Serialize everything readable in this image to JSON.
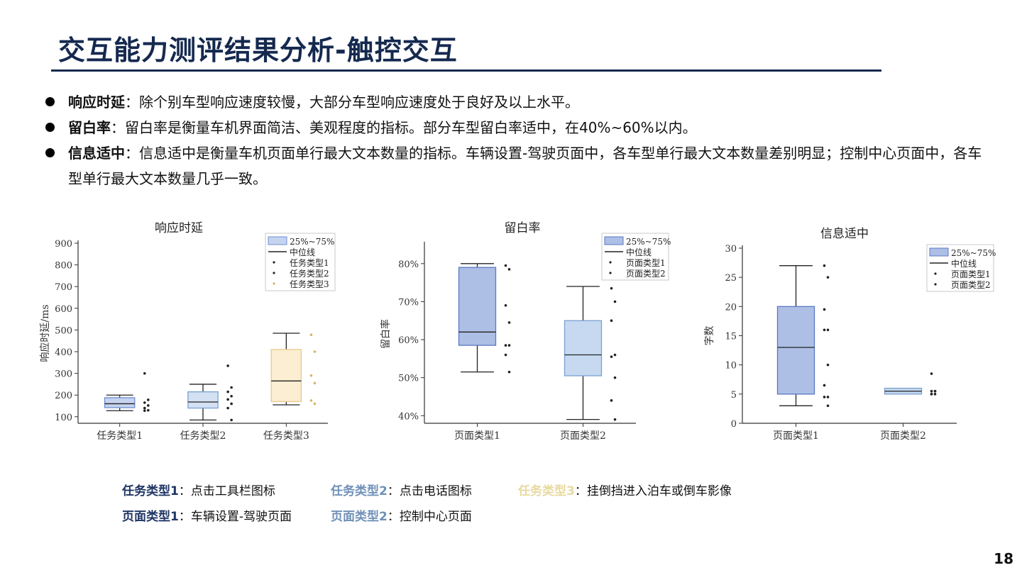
{
  "slide": {
    "title": "交互能力测评结果分析-触控交互",
    "page_number": "18"
  },
  "bullets": [
    {
      "term": "响应时延",
      "text": "：除个别车型响应速度较慢，大部分车型响应速度处于良好及以上水平。"
    },
    {
      "term": "留白率",
      "text": "：留白率是衡量车机界面简洁、美观程度的指标。部分车型留白率适中，在40%~60%以内。"
    },
    {
      "term": "信息适中",
      "text": "：信息适中是衡量车机页面单行最大文本数量的指标。车辆设置-驾驶页面中，各车型单行最大文本数量差别明显；控制中心页面中，各车型单行最大文本数量几乎一致。"
    }
  ],
  "notes": {
    "t1_key": "任务类型1",
    "t1_val": "：点击工具栏图标",
    "t2_key": "任务类型2",
    "t2_val": "：点击电话图标",
    "t3_key": "任务类型3",
    "t3_val": "：挂倒挡进入泊车或倒车影像",
    "p1_key": "页面类型1",
    "p1_val": "：车辆设置-驾驶页面",
    "p2_key": "页面类型2",
    "p2_val": "：控制中心页面",
    "colors": {
      "dark": "#1f3564",
      "mid": "#6f90b8",
      "yellow": "#e8d9a0"
    }
  },
  "chart_data": [
    {
      "type": "box",
      "title": "响应时延",
      "ylabel": "响应时延/ms",
      "xlabel": "",
      "ylim": [
        70,
        900
      ],
      "yticks": [
        100,
        200,
        300,
        400,
        500,
        600,
        700,
        800,
        900
      ],
      "ytick_labels": [
        "100",
        "200",
        "300",
        "400",
        "500",
        "600",
        "700",
        "800",
        "900"
      ],
      "categories": [
        "任务类型1",
        "任务类型2",
        "任务类型3"
      ],
      "legend": [
        "25%~75%",
        "中位线",
        "任务类型1",
        "任务类型2",
        "任务类型3"
      ],
      "series": [
        {
          "name": "任务类型1",
          "q1": 142,
          "median": 160,
          "q3": 188,
          "whisker_low": 128,
          "whisker_high": 200,
          "points": [
            300,
            178,
            165,
            152,
            140,
            130,
            128
          ],
          "color": "#6f8fd0",
          "fill": "#c6d3ef"
        },
        {
          "name": "任务类型2",
          "q1": 140,
          "median": 168,
          "q3": 215,
          "whisker_low": 85,
          "whisker_high": 250,
          "points": [
            335,
            235,
            215,
            195,
            180,
            160,
            140,
            85
          ],
          "color": "#7aa0d0",
          "fill": "#d3e1f3"
        },
        {
          "name": "任务类型3",
          "q1": 170,
          "median": 265,
          "q3": 410,
          "whisker_low": 155,
          "whisker_high": 485,
          "points": [
            478,
            400,
            290,
            255,
            175,
            160
          ],
          "color": "#e9c98a",
          "fill": "#fbeed2"
        }
      ]
    },
    {
      "type": "box",
      "title": "留白率",
      "ylabel": "留白率",
      "xlabel": "",
      "ylim": [
        38,
        85
      ],
      "yticks": [
        40,
        50,
        60,
        70,
        80
      ],
      "ytick_labels": [
        "40%",
        "50%",
        "60%",
        "70%",
        "80%"
      ],
      "categories": [
        "页面类型1",
        "页面类型2"
      ],
      "legend": [
        "25%~75%",
        "中位线",
        "页面类型1",
        "页面类型2"
      ],
      "series": [
        {
          "name": "页面类型1",
          "q1": 58.5,
          "median": 62,
          "q3": 79,
          "whisker_low": 51.5,
          "whisker_high": 80,
          "points": [
            79.5,
            78.5,
            69,
            64.5,
            58.5,
            58.5,
            56,
            51.5
          ],
          "color": "#5a78c0",
          "fill": "#aebfe6"
        },
        {
          "name": "页面类型2",
          "q1": 50.5,
          "median": 56,
          "q3": 65,
          "whisker_low": 39,
          "whisker_high": 74,
          "points": [
            73.5,
            70,
            65,
            56,
            55.5,
            50,
            44,
            39
          ],
          "color": "#7aa0d0",
          "fill": "#c6d9f0"
        }
      ]
    },
    {
      "type": "box",
      "title": "信息适中",
      "ylabel": "字数",
      "xlabel": "",
      "ylim": [
        0,
        30
      ],
      "yticks": [
        0,
        5,
        10,
        15,
        20,
        25,
        30
      ],
      "ytick_labels": [
        "0",
        "5",
        "10",
        "15",
        "20",
        "25",
        "30"
      ],
      "categories": [
        "页面类型1",
        "页面类型2"
      ],
      "legend": [
        "25%~75%",
        "中位线",
        "页面类型1",
        "页面类型2"
      ],
      "series": [
        {
          "name": "页面类型1",
          "q1": 5,
          "median": 13,
          "q3": 20,
          "whisker_low": 3,
          "whisker_high": 27,
          "points": [
            27,
            25,
            19.5,
            16,
            16,
            10,
            6.5,
            4.5,
            4.5,
            3
          ],
          "color": "#5a78c0",
          "fill": "#aebfe6"
        },
        {
          "name": "页面类型2",
          "q1": 5,
          "median": 5.5,
          "q3": 6,
          "whisker_low": 5,
          "whisker_high": 6,
          "points": [
            8.5,
            5.5,
            5.5,
            5.5,
            5,
            5,
            5
          ],
          "color": "#7aa0d0",
          "fill": "#c6d9f0"
        }
      ]
    }
  ]
}
